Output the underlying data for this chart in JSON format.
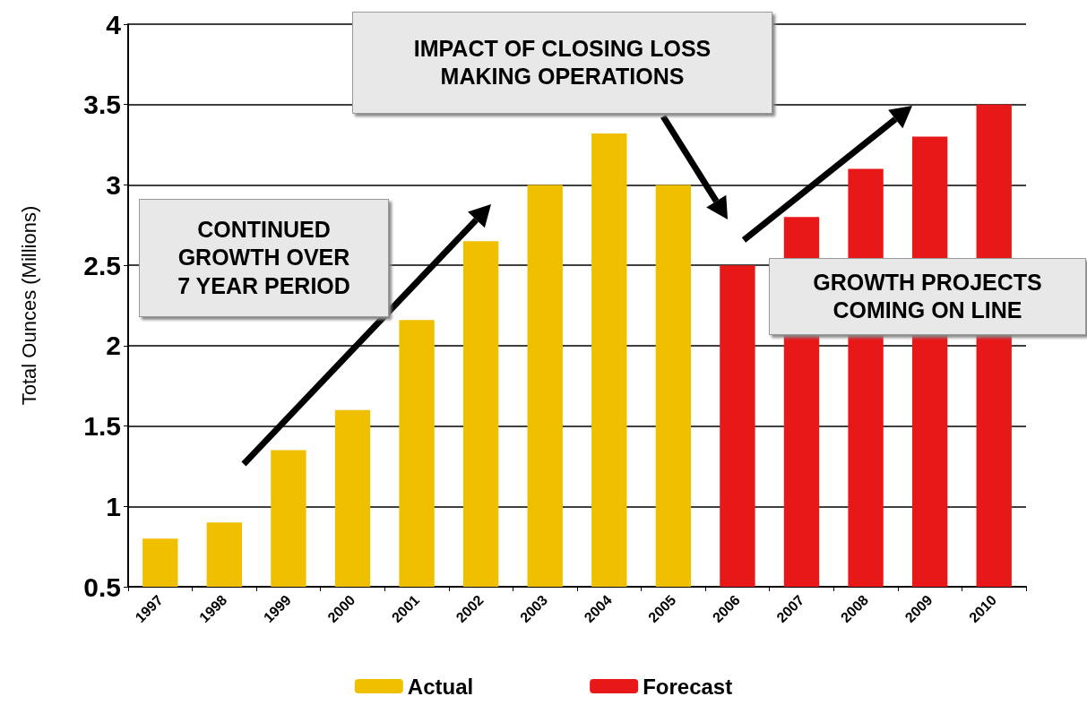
{
  "chart_data": {
    "type": "bar",
    "ylabel": "Total Ounces (Millions)",
    "categories": [
      "1997",
      "1998",
      "1999",
      "2000",
      "2001",
      "2002",
      "2003",
      "2004",
      "2005",
      "2006",
      "2007",
      "2008",
      "2009",
      "2010"
    ],
    "series": [
      {
        "name": "Actual",
        "color": "#f0c000",
        "values": [
          0.8,
          0.9,
          1.35,
          1.6,
          2.16,
          2.65,
          3.0,
          3.32,
          3.0,
          null,
          null,
          null,
          null,
          null
        ]
      },
      {
        "name": "Forecast",
        "color": "#e81818",
        "values": [
          null,
          null,
          null,
          null,
          null,
          null,
          null,
          null,
          null,
          2.5,
          2.8,
          3.1,
          3.3,
          3.5
        ]
      }
    ],
    "ylim": [
      0.5,
      4
    ],
    "yticks": [
      0.5,
      1,
      1.5,
      2,
      2.5,
      3,
      3.5,
      4
    ],
    "grid": "y",
    "legend": "bottom",
    "annotations": [
      "CONTINUED\nGROWTH OVER\n7 YEAR PERIOD",
      "IMPACT OF CLOSING LOSS\nMAKING OPERATIONS",
      "GROWTH PROJECTS\nCOMING ON LINE"
    ]
  }
}
